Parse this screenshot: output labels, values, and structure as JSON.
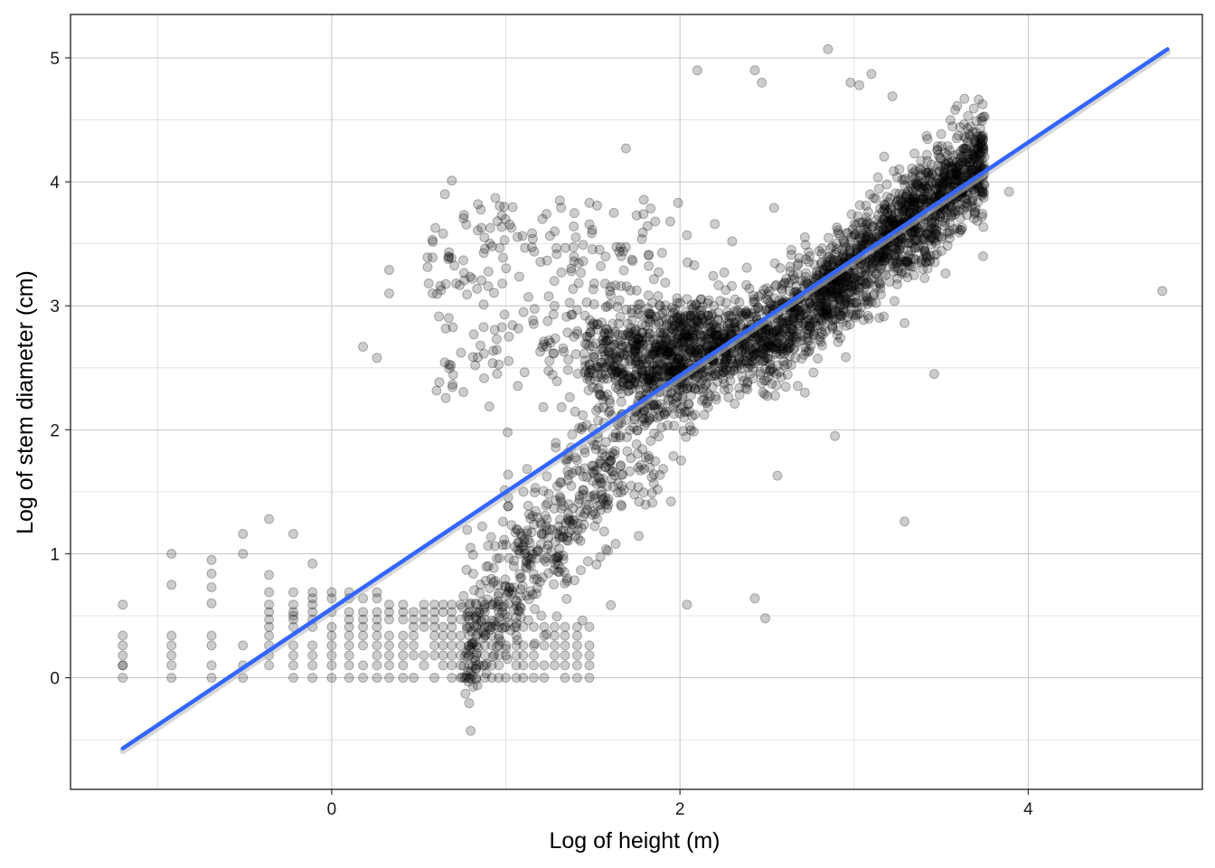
{
  "chart_data": {
    "type": "scatter",
    "title": "",
    "xlabel": "Log of height (m)",
    "ylabel": "Log of stem diameter (cm)",
    "xlim": [
      -1.5,
      5.0
    ],
    "ylim": [
      -0.9,
      5.35
    ],
    "x_ticks": [
      0,
      2,
      4
    ],
    "x_tick_labels": [
      "0",
      "2",
      "4"
    ],
    "y_ticks": [
      0,
      1,
      2,
      3,
      4,
      5
    ],
    "y_tick_labels": [
      "0",
      "1",
      "2",
      "3",
      "4",
      "5"
    ],
    "grid": true,
    "legend": "none",
    "point_color": "#000000",
    "point_opacity": 0.2,
    "fit_line": {
      "color": "#3366FF",
      "x": [
        -1.2,
        4.8
      ],
      "y": [
        -0.57,
        5.07
      ]
    },
    "outlier_points": {
      "x": [
        -1.2,
        -1.2,
        -1.2,
        -0.92,
        -0.92,
        -0.69,
        -0.69,
        -0.69,
        -0.69,
        -0.51,
        -0.51,
        -0.36,
        -0.36,
        -0.22,
        -0.22,
        -0.11,
        0.18,
        0.26,
        0.33,
        0.33,
        0.58,
        0.65,
        0.69,
        0.84,
        0.88,
        0.98,
        1.21,
        1.31,
        1.39,
        1.48,
        1.62,
        1.69,
        1.79,
        1.99,
        2.04,
        2.1,
        2.14,
        2.2,
        2.3,
        2.43,
        2.47,
        2.54,
        2.85,
        2.89,
        2.98,
        3.03,
        3.1,
        3.22,
        3.29,
        3.46,
        3.58,
        3.89,
        4.77,
        3.29,
        2.43,
        2.49,
        2.56,
        2.04,
        1.84,
        1.63,
        1.23,
        1.01
      ],
      "y": [
        0.1,
        0.34,
        0.59,
        0.75,
        1.0,
        0.6,
        0.73,
        0.84,
        0.95,
        1.0,
        1.16,
        1.28,
        0.83,
        1.16,
        0.5,
        0.92,
        2.67,
        2.58,
        3.29,
        3.1,
        3.1,
        3.9,
        4.01,
        3.82,
        3.46,
        3.18,
        3.7,
        3.85,
        3.64,
        3.83,
        3.75,
        4.27,
        3.74,
        3.83,
        3.57,
        4.9,
        2.12,
        3.66,
        3.52,
        4.9,
        4.8,
        3.79,
        5.07,
        1.95,
        4.8,
        4.78,
        4.87,
        4.69,
        1.26,
        2.45,
        4.58,
        3.92,
        3.12,
        2.86,
        0.64,
        0.48,
        1.63,
        0.59,
        1.49,
        1.08,
        1.39,
        1.98
      ]
    }
  }
}
